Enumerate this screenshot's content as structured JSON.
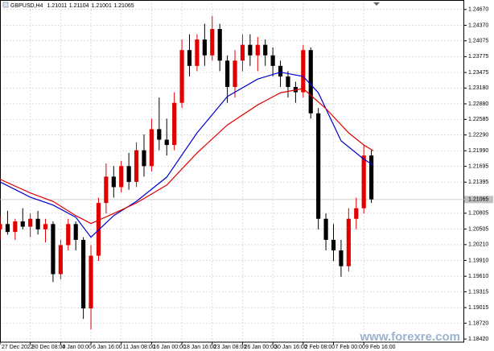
{
  "chart_data": {
    "type": "candlestick",
    "symbol": "GBPUSD,H4",
    "last_bar": {
      "open": 1.21011,
      "high": 1.21104,
      "low": 1.21001,
      "close": 1.21065
    },
    "watermark": "www.forexre.com",
    "bid": 1.21065,
    "up_color": "#e00000",
    "down_color": "#000000",
    "grid": true,
    "xlim": [
      0,
      245
    ],
    "ylim": [
      1.1836,
      1.2485
    ],
    "xticks": [
      {
        "value": 0,
        "label": "27 Dec 2022"
      },
      {
        "value": 16,
        "label": "30 Dec 08:00"
      },
      {
        "value": 32,
        "label": "4 Jan 00:00"
      },
      {
        "value": 48,
        "label": "6 Jan 16:00"
      },
      {
        "value": 64,
        "label": "11 Jan 08:00"
      },
      {
        "value": 80,
        "label": "16 Jan 00:00"
      },
      {
        "value": 96,
        "label": "18 Jan 16:00"
      },
      {
        "value": 112,
        "label": "23 Jan 08:00"
      },
      {
        "value": 128,
        "label": "26 Jan 00:00"
      },
      {
        "value": 144,
        "label": "30 Jan 16:00"
      },
      {
        "value": 160,
        "label": "2 Feb 08:00"
      },
      {
        "value": 176,
        "label": "7 Feb 00:00"
      },
      {
        "value": 192,
        "label": "9 Feb 16:00"
      }
    ],
    "yticks": [
      {
        "value": 1.2467,
        "label": "1.24670"
      },
      {
        "value": 1.2437,
        "label": "1.24370"
      },
      {
        "value": 1.24075,
        "label": "1.24075"
      },
      {
        "value": 1.23775,
        "label": "1.23775"
      },
      {
        "value": 1.23475,
        "label": "1.23475"
      },
      {
        "value": 1.2318,
        "label": "1.23180"
      },
      {
        "value": 1.2288,
        "label": "1.22880"
      },
      {
        "value": 1.22585,
        "label": "1.22585"
      },
      {
        "value": 1.2229,
        "label": "1.22290"
      },
      {
        "value": 1.2199,
        "label": "1.21990"
      },
      {
        "value": 1.21695,
        "label": "1.21695"
      },
      {
        "value": 1.21395,
        "label": "1.21395"
      },
      {
        "value": 1.20805,
        "label": "1.20805"
      },
      {
        "value": 1.20505,
        "label": "1.20505"
      },
      {
        "value": 1.2021,
        "label": "1.20210"
      },
      {
        "value": 1.1991,
        "label": "1.19910"
      },
      {
        "value": 1.1961,
        "label": "1.19610"
      },
      {
        "value": 1.19315,
        "label": "1.19315"
      },
      {
        "value": 1.19015,
        "label": "1.19015"
      },
      {
        "value": 1.1872,
        "label": "1.18720"
      },
      {
        "value": 1.1842,
        "label": "1.18420"
      }
    ],
    "x": [
      0,
      4,
      8,
      12,
      16,
      20,
      24,
      28,
      32,
      36,
      40,
      44,
      48,
      52,
      56,
      60,
      64,
      68,
      72,
      76,
      80,
      84,
      88,
      92,
      96,
      100,
      104,
      108,
      112,
      116,
      120,
      124,
      128,
      132,
      136,
      140,
      144,
      148,
      152,
      156,
      160,
      164,
      168,
      172,
      176,
      180,
      184,
      188,
      192,
      196
    ],
    "open": [
      1.205,
      1.206,
      1.2045,
      1.2065,
      1.2055,
      1.207,
      1.205,
      1.206,
      1.1965,
      1.202,
      1.206,
      1.203,
      1.19,
      1.2,
      1.21,
      1.215,
      1.213,
      1.217,
      1.214,
      1.22,
      1.217,
      1.224,
      1.222,
      1.221,
      1.229,
      1.239,
      1.236,
      1.241,
      1.238,
      1.243,
      1.237,
      1.232,
      1.237,
      1.24,
      1.238,
      1.24,
      1.238,
      1.236,
      1.234,
      1.232,
      1.231,
      1.239,
      1.227,
      1.207,
      1.203,
      1.201,
      1.198,
      1.207,
      1.209,
      1.219
    ],
    "high": [
      1.2075,
      1.2085,
      1.207,
      1.209,
      1.208,
      1.2085,
      1.207,
      1.2065,
      1.203,
      1.207,
      1.2065,
      1.2035,
      1.202,
      1.211,
      1.2175,
      1.217,
      1.218,
      1.2195,
      1.2215,
      1.223,
      1.226,
      1.23,
      1.226,
      1.231,
      1.241,
      1.242,
      1.242,
      1.244,
      1.2455,
      1.244,
      1.238,
      1.239,
      1.242,
      1.242,
      1.2415,
      1.241,
      1.2395,
      1.237,
      1.235,
      1.233,
      1.24,
      1.2395,
      1.228,
      1.208,
      1.206,
      1.203,
      1.209,
      1.211,
      1.221,
      1.22
    ],
    "low": [
      1.203,
      1.204,
      1.203,
      1.205,
      1.2035,
      1.204,
      1.2025,
      1.195,
      1.1955,
      1.201,
      1.201,
      1.188,
      1.186,
      1.199,
      1.208,
      1.211,
      1.212,
      1.2125,
      1.213,
      1.215,
      1.216,
      1.22,
      1.219,
      1.22,
      1.228,
      1.234,
      1.235,
      1.236,
      1.237,
      1.235,
      1.229,
      1.23,
      1.235,
      1.236,
      1.235,
      1.236,
      1.234,
      1.232,
      1.23,
      1.229,
      1.23,
      1.226,
      1.205,
      1.201,
      1.199,
      1.196,
      1.197,
      1.205,
      1.208,
      1.21
    ],
    "close": [
      1.206,
      1.2045,
      1.2065,
      1.2055,
      1.207,
      1.205,
      1.206,
      1.1965,
      1.202,
      1.206,
      1.203,
      1.19,
      1.2,
      1.21,
      1.215,
      1.213,
      1.217,
      1.214,
      1.22,
      1.217,
      1.224,
      1.222,
      1.221,
      1.229,
      1.239,
      1.236,
      1.241,
      1.238,
      1.243,
      1.237,
      1.232,
      1.237,
      1.24,
      1.238,
      1.24,
      1.238,
      1.236,
      1.234,
      1.232,
      1.231,
      1.239,
      1.227,
      1.207,
      1.203,
      1.201,
      1.198,
      1.207,
      1.209,
      1.219,
      1.2107
    ],
    "lines": [
      {
        "color": "#0000cc",
        "x": [
          0,
          16,
          28,
          40,
          48,
          60,
          72,
          88,
          104,
          120,
          136,
          148,
          160,
          168,
          180,
          192,
          197
        ],
        "values": [
          1.214,
          1.2111,
          1.2096,
          1.2073,
          1.2035,
          1.2076,
          1.2103,
          1.2149,
          1.2233,
          1.2302,
          1.2335,
          1.2348,
          1.234,
          1.2309,
          1.2218,
          1.2183,
          1.2172
        ]
      },
      {
        "color": "#e00000",
        "x": [
          0,
          16,
          28,
          40,
          48,
          60,
          72,
          88,
          104,
          120,
          136,
          148,
          160,
          172,
          184,
          192,
          197
        ],
        "values": [
          1.2145,
          1.2119,
          1.2103,
          1.2076,
          1.2061,
          1.208,
          1.21,
          1.2134,
          1.2195,
          1.2248,
          1.2286,
          1.2309,
          1.2317,
          1.2279,
          1.2233,
          1.221,
          1.2199
        ]
      }
    ]
  }
}
